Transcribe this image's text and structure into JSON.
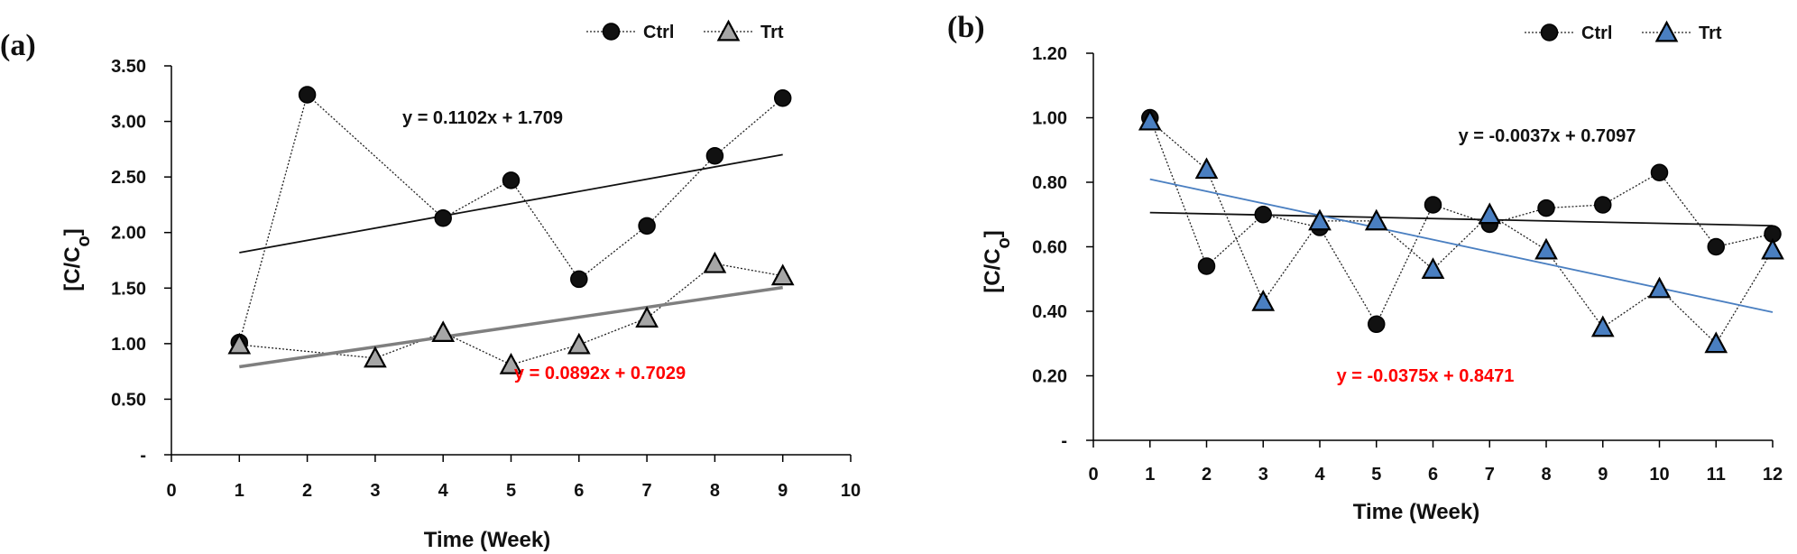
{
  "chart_data": [
    {
      "type": "line",
      "panel_label": "(a)",
      "xlabel": "Time (Week)",
      "ylabel": "[C/C",
      "ylabel_sub": "o",
      "ylabel_end": "]",
      "xlim": [
        0,
        10
      ],
      "ylim": [
        0,
        3.5
      ],
      "x_ticks": [
        0,
        1,
        2,
        3,
        4,
        5,
        6,
        7,
        8,
        9,
        10
      ],
      "x_tick_labels": [
        "0",
        "1",
        "2",
        "3",
        "4",
        "5",
        "6",
        "7",
        "8",
        "9",
        "10"
      ],
      "y_ticks": [
        0,
        0.5,
        1.0,
        1.5,
        2.0,
        2.5,
        3.0,
        3.5
      ],
      "y_tick_labels": [
        "-",
        "0.50",
        "1.00",
        "1.50",
        "2.00",
        "2.50",
        "3.00",
        "3.50"
      ],
      "grid": false,
      "legend": "top-right",
      "series": [
        {
          "name": "Ctrl",
          "marker": "circle",
          "marker_color": "#111111",
          "x": [
            1,
            2,
            4,
            5,
            6,
            7,
            8,
            9
          ],
          "values": [
            1.01,
            3.24,
            2.13,
            2.47,
            1.58,
            2.06,
            2.69,
            3.21
          ],
          "trend": {
            "slope": 0.1102,
            "intercept": 1.709,
            "x_from": 1,
            "x_to": 9,
            "color": "#111111",
            "equation": "y = 0.1102x + 1.709",
            "equation_color": "#111111"
          }
        },
        {
          "name": "Trt",
          "marker": "triangle",
          "marker_color": "#a6a6a6",
          "x": [
            1,
            3,
            4,
            5,
            6,
            7,
            8,
            9
          ],
          "values": [
            0.99,
            0.87,
            1.1,
            0.81,
            0.99,
            1.23,
            1.72,
            1.61
          ],
          "trend": {
            "slope": 0.0892,
            "intercept": 0.7029,
            "x_from": 1,
            "x_to": 9,
            "color": "#7f7f7f",
            "equation": "y = 0.0892x + 0.7029",
            "equation_color": "#ff0000"
          }
        }
      ]
    },
    {
      "type": "line",
      "panel_label": "(b)",
      "xlabel": "Time (Week)",
      "ylabel": "[C/C",
      "ylabel_sub": "o",
      "ylabel_end": "]",
      "xlim": [
        0,
        12
      ],
      "ylim": [
        0,
        1.2
      ],
      "x_ticks": [
        0,
        1,
        2,
        3,
        4,
        5,
        6,
        7,
        8,
        9,
        10,
        11,
        12
      ],
      "x_tick_labels": [
        "0",
        "1",
        "2",
        "3",
        "4",
        "5",
        "6",
        "7",
        "8",
        "9",
        "10",
        "11",
        "12"
      ],
      "y_ticks": [
        0,
        0.2,
        0.4,
        0.6,
        0.8,
        1.0,
        1.2
      ],
      "y_tick_labels": [
        "-",
        "0.20",
        "0.40",
        "0.60",
        "0.80",
        "1.00",
        "1.20"
      ],
      "grid": false,
      "legend": "top-right",
      "series": [
        {
          "name": "Ctrl",
          "marker": "circle",
          "marker_color": "#111111",
          "x": [
            1,
            2,
            3,
            4,
            5,
            6,
            7,
            8,
            9,
            10,
            11,
            12
          ],
          "values": [
            1.0,
            0.54,
            0.7,
            0.66,
            0.36,
            0.73,
            0.67,
            0.72,
            0.73,
            0.83,
            0.6,
            0.64
          ],
          "trend": {
            "slope": -0.0037,
            "intercept": 0.7097,
            "x_from": 1,
            "x_to": 12,
            "color": "#111111",
            "equation": "y = -0.0037x + 0.7097",
            "equation_color": "#111111"
          }
        },
        {
          "name": "Trt",
          "marker": "triangle",
          "marker_color": "#4a7fc1",
          "x": [
            1,
            2,
            3,
            4,
            5,
            6,
            7,
            8,
            9,
            10,
            11,
            12
          ],
          "values": [
            0.99,
            0.84,
            0.43,
            0.68,
            0.68,
            0.53,
            0.7,
            0.59,
            0.35,
            0.47,
            0.3,
            0.59
          ],
          "trend": {
            "slope": -0.0375,
            "intercept": 0.8471,
            "x_from": 1,
            "x_to": 12,
            "color": "#4a7fc1",
            "equation": "y = -0.0375x + 0.8471",
            "equation_color": "#ff0000"
          }
        }
      ]
    }
  ]
}
